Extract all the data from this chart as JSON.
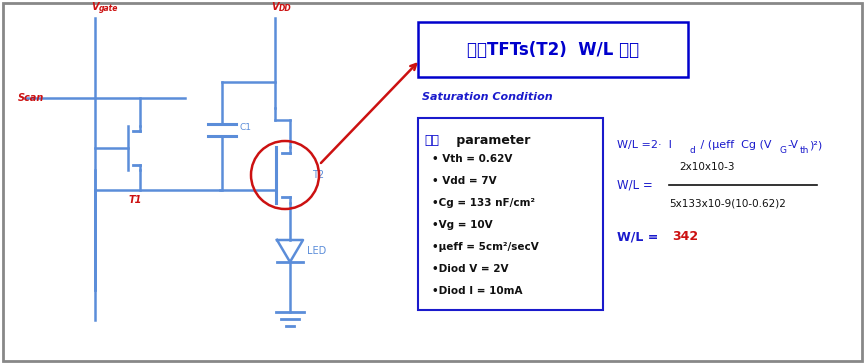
{
  "bg_color": "#ffffff",
  "border_color": "#888888",
  "circuit_color": "#5b8dd9",
  "red_color": "#cc1111",
  "blue_dark": "#1a1acc",
  "blue_title": "#0000cc",
  "dark_text": "#111111",
  "title_text": "구동TFTs(T2)  W/L 설계",
  "saturation_text": "Saturation Condition",
  "param_header_ko": "고정",
  "param_header_en": " parameter",
  "params": [
    "• Vth = 0.62V",
    "• Vdd = 7V",
    "•Cg = 133 nF/cm²",
    "•Vg = 10V",
    "•μeff = 5cm²/secV",
    "•Diod V = 2V",
    "•Diod I = 10mA"
  ],
  "formula1_pre": "W/L =2·  I",
  "formula1_sub": "d",
  "formula1_post": " / (μeff  Cg (V",
  "formula1_sub2": "G",
  "formula1_post2": "-V",
  "formula1_sub3": "th",
  "formula1_post3": ")²)",
  "formula2_label": "W/L =",
  "formula2_num": "2x10x10-3",
  "formula2_den": "5x133x10-9(10-0.62)2",
  "formula3_prefix": "W/L = ",
  "formula3_value": "342",
  "vgate_label": "V",
  "vgate_sub": "gate",
  "vdd_label": "V",
  "vdd_sub": "DD",
  "scan_label": "Scan",
  "t1_label": "T1",
  "t2_label": "T2",
  "c1_label": "C1",
  "led_label": "LED",
  "figw": 8.65,
  "figh": 3.64,
  "dpi": 100
}
